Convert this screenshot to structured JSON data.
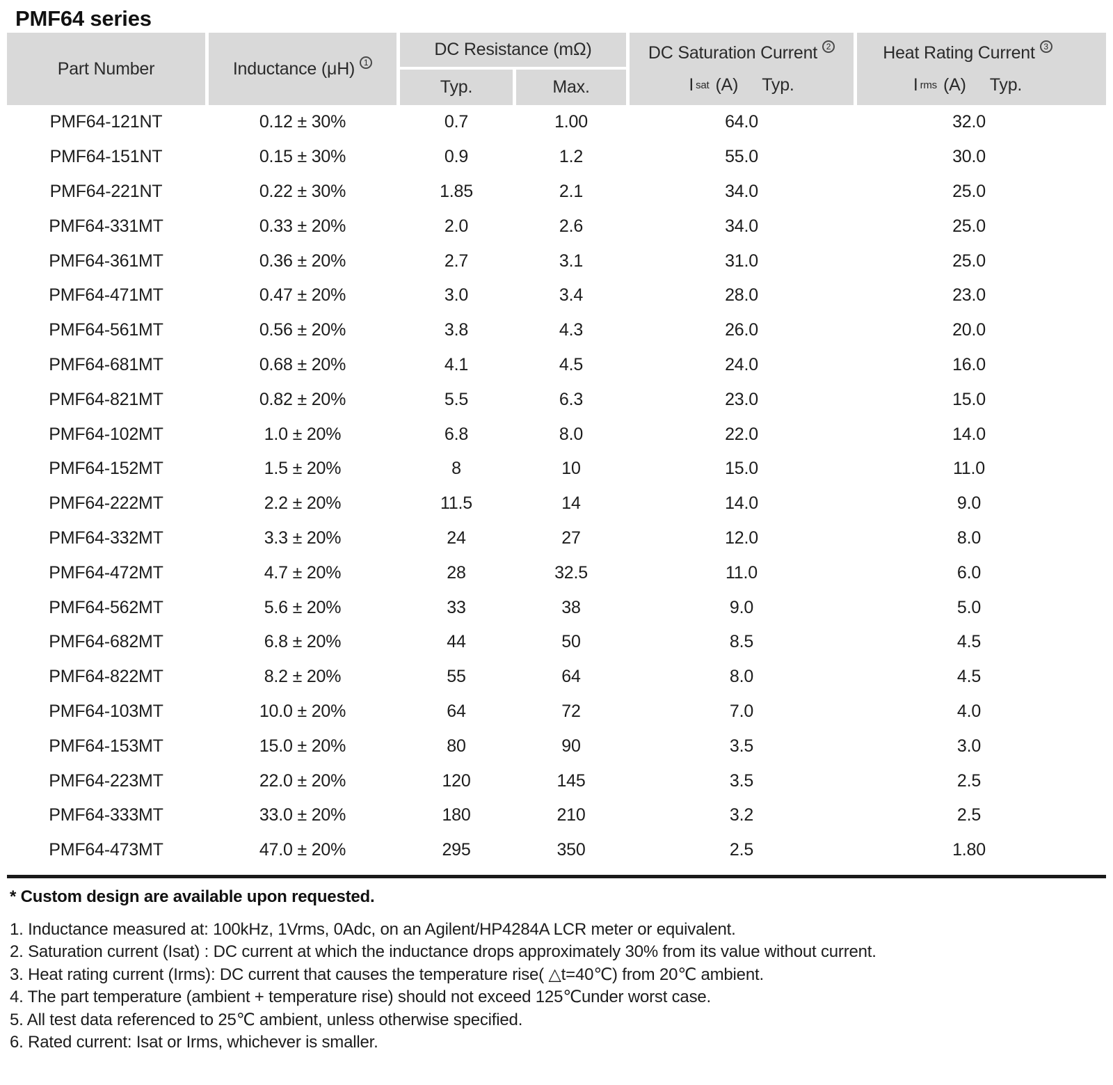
{
  "page": {
    "title": "PMF64 series"
  },
  "table": {
    "headers": {
      "part_number": "Part Number",
      "inductance": "Inductance (μH)",
      "inductance_note": "1",
      "dc_resistance": "DC Resistance (mΩ)",
      "typ": "Typ.",
      "max": "Max.",
      "dc_saturation": "DC Saturation Current",
      "dc_saturation_note": "2",
      "sat_symbol": "I",
      "sat_sub": "sat",
      "sat_unit": "(A)",
      "sat_typ": "Typ.",
      "heat_rating": "Heat Rating Current",
      "heat_rating_note": "3",
      "rms_symbol": "I",
      "rms_sub": "rms",
      "rms_unit": "(A)",
      "rms_typ": "Typ."
    },
    "rows": [
      {
        "part": "PMF64-121NT",
        "inductance": "0.12 ± 30%",
        "typ": "0.7",
        "max": "1.00",
        "isat": "64.0",
        "irms": "32.0"
      },
      {
        "part": "PMF64-151NT",
        "inductance": "0.15 ± 30%",
        "typ": "0.9",
        "max": "1.2",
        "isat": "55.0",
        "irms": "30.0"
      },
      {
        "part": "PMF64-221NT",
        "inductance": "0.22 ± 30%",
        "typ": "1.85",
        "max": "2.1",
        "isat": "34.0",
        "irms": "25.0"
      },
      {
        "part": "PMF64-331MT",
        "inductance": "0.33 ± 20%",
        "typ": "2.0",
        "max": "2.6",
        "isat": "34.0",
        "irms": "25.0"
      },
      {
        "part": "PMF64-361MT",
        "inductance": "0.36 ± 20%",
        "typ": "2.7",
        "max": "3.1",
        "isat": "31.0",
        "irms": "25.0"
      },
      {
        "part": "PMF64-471MT",
        "inductance": "0.47 ± 20%",
        "typ": "3.0",
        "max": "3.4",
        "isat": "28.0",
        "irms": "23.0"
      },
      {
        "part": "PMF64-561MT",
        "inductance": "0.56 ± 20%",
        "typ": "3.8",
        "max": "4.3",
        "isat": "26.0",
        "irms": "20.0"
      },
      {
        "part": "PMF64-681MT",
        "inductance": "0.68 ± 20%",
        "typ": "4.1",
        "max": "4.5",
        "isat": "24.0",
        "irms": "16.0"
      },
      {
        "part": "PMF64-821MT",
        "inductance": "0.82 ± 20%",
        "typ": "5.5",
        "max": "6.3",
        "isat": "23.0",
        "irms": "15.0"
      },
      {
        "part": "PMF64-102MT",
        "inductance": "1.0 ± 20%",
        "typ": "6.8",
        "max": "8.0",
        "isat": "22.0",
        "irms": "14.0"
      },
      {
        "part": "PMF64-152MT",
        "inductance": "1.5 ± 20%",
        "typ": "8",
        "max": "10",
        "isat": "15.0",
        "irms": "11.0"
      },
      {
        "part": "PMF64-222MT",
        "inductance": "2.2 ± 20%",
        "typ": "11.5",
        "max": "14",
        "isat": "14.0",
        "irms": "9.0"
      },
      {
        "part": "PMF64-332MT",
        "inductance": "3.3 ± 20%",
        "typ": "24",
        "max": "27",
        "isat": "12.0",
        "irms": "8.0"
      },
      {
        "part": "PMF64-472MT",
        "inductance": "4.7 ± 20%",
        "typ": "28",
        "max": "32.5",
        "isat": "11.0",
        "irms": "6.0"
      },
      {
        "part": "PMF64-562MT",
        "inductance": "5.6 ± 20%",
        "typ": "33",
        "max": "38",
        "isat": "9.0",
        "irms": "5.0"
      },
      {
        "part": "PMF64-682MT",
        "inductance": "6.8 ± 20%",
        "typ": "44",
        "max": "50",
        "isat": "8.5",
        "irms": "4.5"
      },
      {
        "part": "PMF64-822MT",
        "inductance": "8.2 ± 20%",
        "typ": "55",
        "max": "64",
        "isat": "8.0",
        "irms": "4.5"
      },
      {
        "part": "PMF64-103MT",
        "inductance": "10.0 ± 20%",
        "typ": "64",
        "max": "72",
        "isat": "7.0",
        "irms": "4.0"
      },
      {
        "part": "PMF64-153MT",
        "inductance": "15.0 ± 20%",
        "typ": "80",
        "max": "90",
        "isat": "3.5",
        "irms": "3.0"
      },
      {
        "part": "PMF64-223MT",
        "inductance": "22.0 ± 20%",
        "typ": "120",
        "max": "145",
        "isat": "3.5",
        "irms": "2.5"
      },
      {
        "part": "PMF64-333MT",
        "inductance": "33.0 ± 20%",
        "typ": "180",
        "max": "210",
        "isat": "3.2",
        "irms": "2.5"
      },
      {
        "part": "PMF64-473MT",
        "inductance": "47.0 ± 20%",
        "typ": "295",
        "max": "350",
        "isat": "2.5",
        "irms": "1.80"
      }
    ]
  },
  "footnotes": {
    "star": "* Custom design are available upon requested.",
    "items": [
      "1. Inductance measured at: 100kHz, 1Vrms, 0Adc, on an Agilent/HP4284A LCR meter or equivalent.",
      "2. Saturation current (Isat) : DC current at which the inductance drops approximately 30% from its value without current.",
      "3. Heat rating current (Irms): DC current that causes the temperature rise( △t=40℃) from 20℃ ambient.",
      "4. The part temperature (ambient + temperature rise) should not exceed 125℃under worst case.",
      "5. All test data referenced to 25℃ ambient, unless otherwise specified.",
      "6. Rated current: Isat or Irms, whichever is smaller."
    ]
  },
  "colors": {
    "header_bg": "#d9d9d9",
    "text": "#1c1c1c",
    "rule_dark": "#1a1a1a"
  }
}
